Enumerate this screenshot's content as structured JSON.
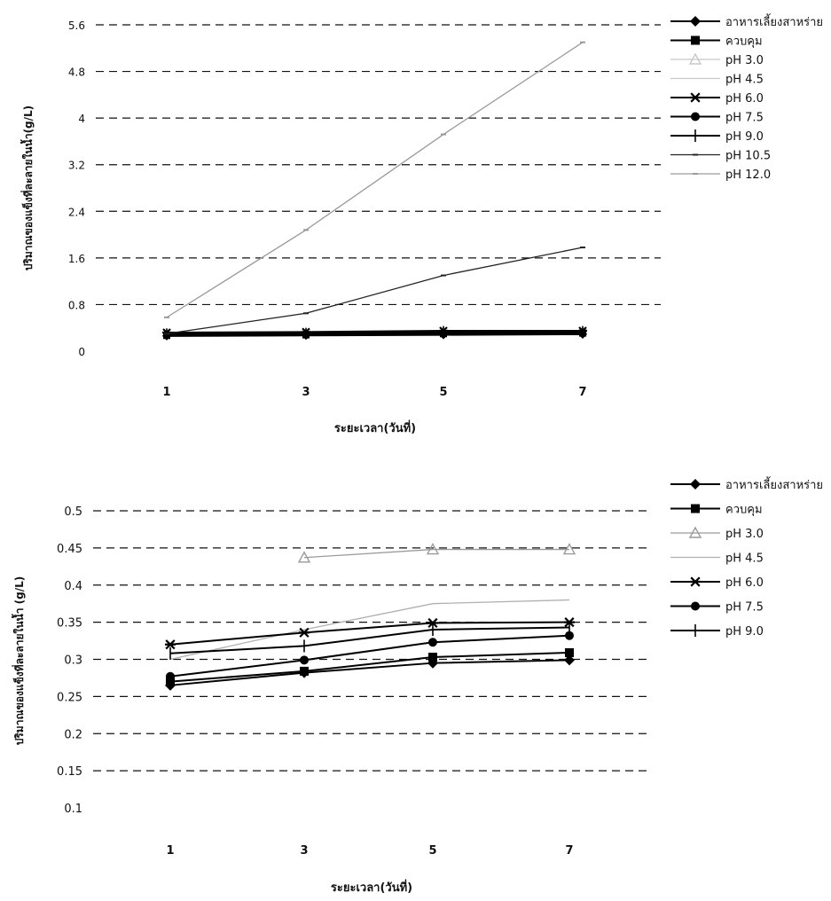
{
  "chart_data": [
    {
      "type": "line",
      "title": "",
      "xlabel": "ระยะเวลา(วันที่)",
      "ylabel": "ปริมาณของแข็งที่ละลายในน้ำ(g/L)",
      "categories": [
        "1",
        "3",
        "5",
        "7"
      ],
      "yticks": [
        "0",
        "0.8",
        "1.6",
        "2.4",
        "3.2",
        "4",
        "4.8",
        "5.6"
      ],
      "ylim": [
        0,
        5.6
      ],
      "grid": "horizontal dashed",
      "legend_position": "right",
      "series": [
        {
          "name": "อาหารเลี้ยงสาหร่าย",
          "marker": "diamond",
          "color": "#000000",
          "values": [
            0.26,
            0.27,
            0.28,
            0.29
          ]
        },
        {
          "name": "ควบคุม",
          "marker": "square",
          "color": "#000000",
          "values": [
            0.27,
            0.28,
            0.3,
            0.31
          ]
        },
        {
          "name": "pH 3.0",
          "marker": "triangle",
          "color": "#c8c8c8",
          "values": [
            null,
            null,
            null,
            null
          ]
        },
        {
          "name": "pH 4.5",
          "marker": "none",
          "color": "#c8c8c8",
          "values": [
            null,
            null,
            null,
            null
          ]
        },
        {
          "name": "pH 6.0",
          "marker": "star",
          "color": "#000000",
          "values": [
            0.32,
            0.33,
            0.35,
            0.35
          ]
        },
        {
          "name": "pH 7.5",
          "marker": "circle",
          "color": "#000000",
          "values": [
            0.28,
            0.3,
            0.32,
            0.33
          ]
        },
        {
          "name": "pH 9.0",
          "marker": "plus",
          "color": "#000000",
          "values": [
            0.3,
            0.31,
            0.34,
            0.34
          ]
        },
        {
          "name": "pH 10.5",
          "marker": "dash",
          "color": "#222222",
          "values": [
            0.3,
            0.65,
            1.3,
            1.78
          ]
        },
        {
          "name": "pH 12.0",
          "marker": "dash",
          "color": "#9a9a9a",
          "values": [
            0.58,
            2.08,
            3.72,
            5.3
          ]
        }
      ]
    },
    {
      "type": "line",
      "title": "",
      "xlabel": "ระยะเวลา(วันที่)",
      "ylabel": "ปริมาณของแข็งที่ละลายในน้ำ (g/L)",
      "categories": [
        "1",
        "3",
        "5",
        "7"
      ],
      "yticks": [
        "0.1",
        "0.15",
        "0.2",
        "0.25",
        "0.3",
        "0.35",
        "0.4",
        "0.45",
        "0.5"
      ],
      "ylim": [
        0.1,
        0.5
      ],
      "grid": "horizontal dashed",
      "legend_position": "right",
      "series": [
        {
          "name": "อาหารเลี้ยงสาหร่าย",
          "marker": "diamond",
          "color": "#000000",
          "values": [
            0.265,
            0.282,
            0.295,
            0.299
          ]
        },
        {
          "name": "ควบคุม",
          "marker": "square",
          "color": "#000000",
          "values": [
            0.27,
            0.284,
            0.303,
            0.309
          ]
        },
        {
          "name": "pH 3.0",
          "marker": "triangle",
          "color": "#9a9a9a",
          "values": [
            null,
            0.437,
            0.448,
            0.448
          ]
        },
        {
          "name": "pH 4.5",
          "marker": "none",
          "color": "#b0b0b0",
          "values": [
            0.3,
            0.34,
            0.375,
            0.38
          ]
        },
        {
          "name": "pH 6.0",
          "marker": "star",
          "color": "#000000",
          "values": [
            0.32,
            0.336,
            0.349,
            0.35
          ]
        },
        {
          "name": "pH 7.5",
          "marker": "circle",
          "color": "#000000",
          "values": [
            0.277,
            0.299,
            0.323,
            0.332
          ]
        },
        {
          "name": "pH 9.0",
          "marker": "plus",
          "color": "#000000",
          "values": [
            0.308,
            0.318,
            0.34,
            0.343
          ]
        }
      ]
    }
  ]
}
